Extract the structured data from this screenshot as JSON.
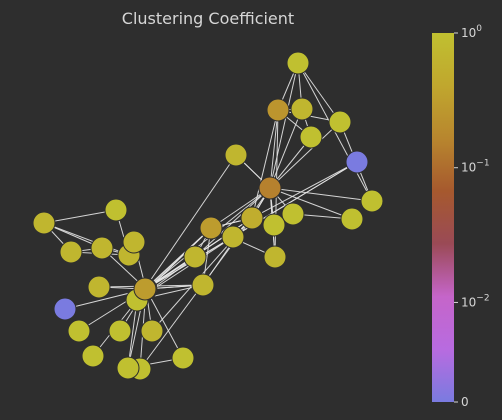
{
  "chart_data": {
    "type": "network",
    "title": "Clustering Coefficient",
    "colorbar": {
      "scale": "symlog",
      "ticks": [
        {
          "value": 1,
          "base": "10",
          "exp": "0"
        },
        {
          "value": 0.1,
          "base": "10",
          "exp": "−1"
        },
        {
          "value": 0.01,
          "base": "10",
          "exp": "−2"
        },
        {
          "value": 0,
          "base": "0",
          "exp": ""
        }
      ],
      "colormap": [
        "#7a7be0",
        "#b86be0",
        "#c565c9",
        "#9a4a56",
        "#a6592e",
        "#b8862e",
        "#c0a72e",
        "#c0c030"
      ]
    },
    "nodes": [
      {
        "id": 0,
        "clustering": 0.7
      },
      {
        "id": 1,
        "clustering": 0.7
      },
      {
        "id": 2,
        "clustering": 0.7
      },
      {
        "id": 3,
        "clustering": 0.7
      },
      {
        "id": 4,
        "clustering": 1.0
      },
      {
        "id": 5,
        "clustering": 0.7
      },
      {
        "id": 6,
        "clustering": 0.1
      },
      {
        "id": 7,
        "clustering": 0.0
      },
      {
        "id": 8,
        "clustering": 1.0
      },
      {
        "id": 9,
        "clustering": 0.7
      },
      {
        "id": 10,
        "clustering": 1.0
      },
      {
        "id": 11,
        "clustering": 1.0
      },
      {
        "id": 12,
        "clustering": 1.0
      },
      {
        "id": 13,
        "clustering": 0.7
      },
      {
        "id": 14,
        "clustering": 1.0
      },
      {
        "id": 15,
        "clustering": 0.7
      },
      {
        "id": 16,
        "clustering": 0.7
      },
      {
        "id": 17,
        "clustering": 0.3
      },
      {
        "id": 18,
        "clustering": 0.7
      },
      {
        "id": 19,
        "clustering": 0.7
      },
      {
        "id": 20,
        "clustering": 0.12
      },
      {
        "id": 21,
        "clustering": 0.0
      },
      {
        "id": 22,
        "clustering": 0.7
      },
      {
        "id": 23,
        "clustering": 0.15
      },
      {
        "id": 24,
        "clustering": 0.25
      },
      {
        "id": 25,
        "clustering": 0.7
      },
      {
        "id": 26,
        "clustering": 1.0
      },
      {
        "id": 27,
        "clustering": 1.0
      },
      {
        "id": 28,
        "clustering": 1.0
      },
      {
        "id": 29,
        "clustering": 1.0
      },
      {
        "id": 30,
        "clustering": 1.0
      },
      {
        "id": 31,
        "clustering": 1.0
      },
      {
        "id": 32,
        "clustering": 1.0
      },
      {
        "id": 33,
        "clustering": 0.7
      },
      {
        "id": 34,
        "clustering": 0.5
      },
      {
        "id": 35,
        "clustering": 0.3
      },
      {
        "id": 36,
        "clustering": 1.0
      },
      {
        "id": 37,
        "clustering": 1.0
      },
      {
        "id": 38,
        "clustering": 0.3
      }
    ],
    "edges": [
      [
        0,
        1
      ],
      [
        0,
        2
      ],
      [
        0,
        3
      ],
      [
        0,
        4
      ],
      [
        1,
        2
      ],
      [
        1,
        3
      ],
      [
        2,
        3
      ],
      [
        3,
        4
      ],
      [
        5,
        6
      ],
      [
        2,
        6
      ],
      [
        7,
        6
      ],
      [
        8,
        6
      ],
      [
        9,
        6
      ],
      [
        10,
        6
      ],
      [
        11,
        6
      ],
      [
        12,
        6
      ],
      [
        13,
        6
      ],
      [
        14,
        6
      ],
      [
        15,
        6
      ],
      [
        16,
        6
      ],
      [
        17,
        6
      ],
      [
        18,
        6
      ],
      [
        19,
        6
      ],
      [
        20,
        6
      ],
      [
        21,
        6
      ],
      [
        22,
        23
      ],
      [
        24,
        23
      ],
      [
        25,
        23
      ],
      [
        23,
        26
      ],
      [
        23,
        27
      ],
      [
        23,
        28
      ],
      [
        23,
        29
      ],
      [
        23,
        30
      ],
      [
        23,
        31
      ],
      [
        23,
        32
      ],
      [
        23,
        33
      ],
      [
        23,
        34
      ],
      [
        24,
        33
      ],
      [
        24,
        25
      ],
      [
        24,
        26
      ],
      [
        24,
        27
      ],
      [
        24,
        28
      ],
      [
        25,
        26
      ],
      [
        25,
        28
      ],
      [
        26,
        27
      ],
      [
        26,
        29
      ],
      [
        27,
        29
      ],
      [
        30,
        31
      ],
      [
        31,
        32
      ],
      [
        33,
        35
      ],
      [
        34,
        35
      ],
      [
        35,
        36
      ],
      [
        35,
        38
      ],
      [
        36,
        37
      ],
      [
        36,
        38
      ],
      [
        37,
        38
      ],
      [
        35,
        20
      ],
      [
        34,
        20
      ],
      [
        33,
        20
      ],
      [
        38,
        19
      ],
      [
        36,
        18
      ],
      [
        36,
        17
      ],
      [
        37,
        14
      ],
      [
        17,
        16
      ],
      [
        17,
        15
      ],
      [
        17,
        19
      ],
      [
        18,
        19
      ],
      [
        20,
        19
      ],
      [
        20,
        15
      ],
      [
        20,
        16
      ],
      [
        18,
        21
      ],
      [
        19,
        21
      ],
      [
        19,
        12
      ],
      [
        13,
        19
      ],
      [
        22,
        20
      ],
      [
        22,
        36
      ],
      [
        24,
        34
      ],
      [
        34,
        38
      ],
      [
        36,
        15
      ],
      [
        36,
        16
      ],
      [
        9,
        16
      ],
      [
        38,
        16
      ]
    ]
  }
}
